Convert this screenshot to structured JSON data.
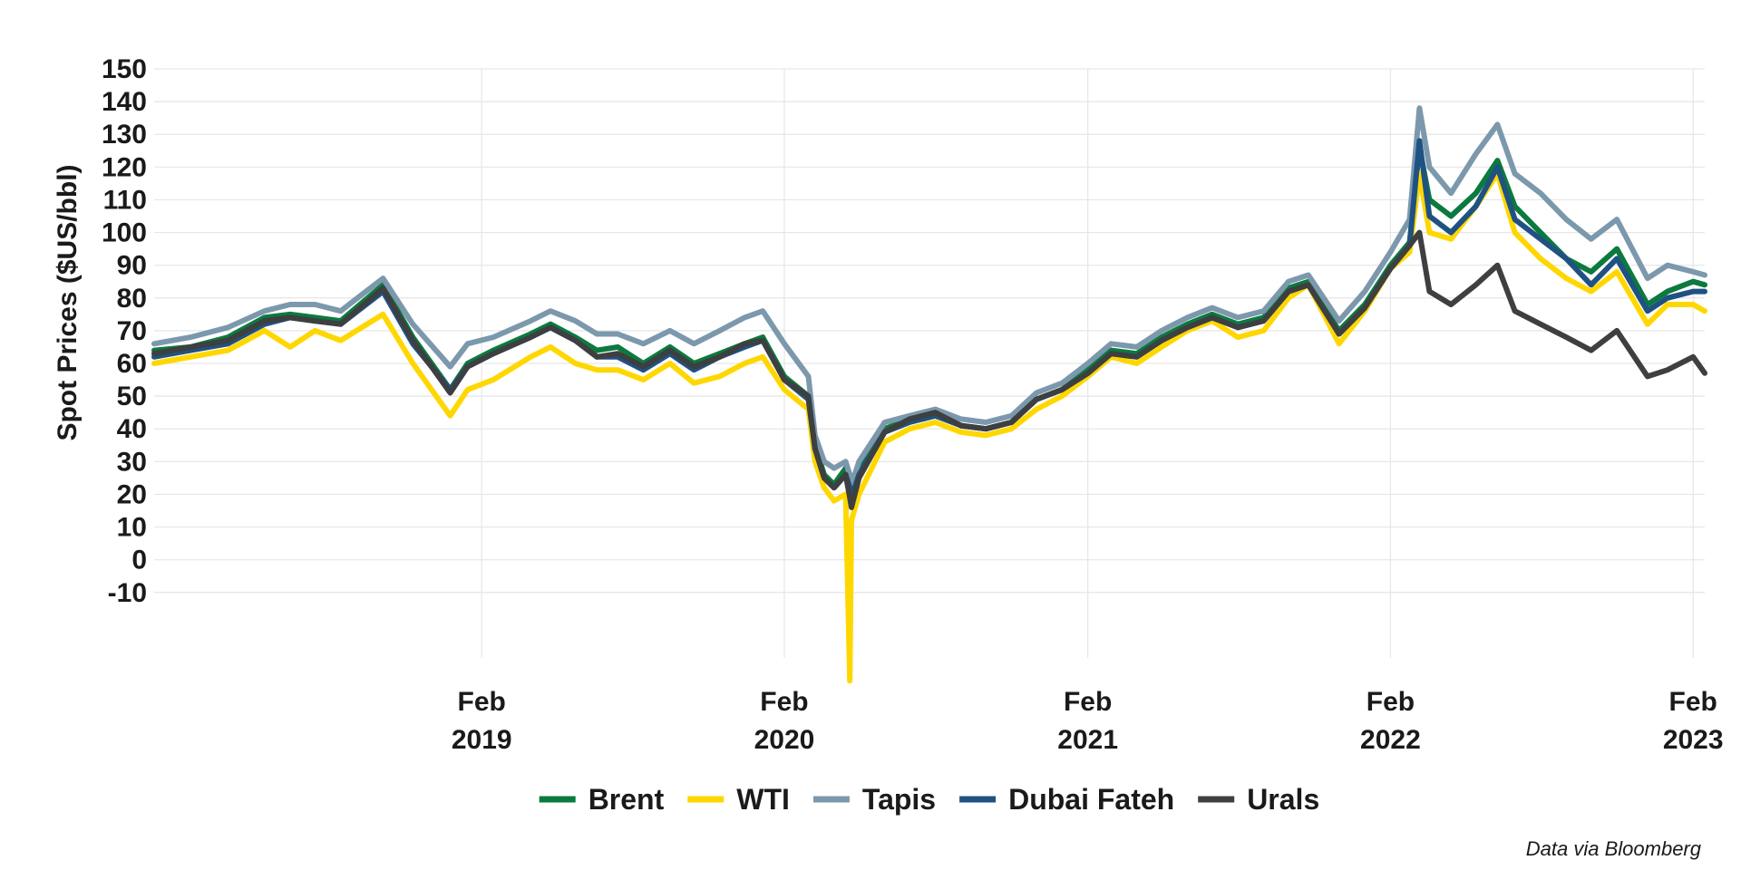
{
  "chart_data": {
    "type": "line",
    "title": "",
    "ylabel": "Spot Prices ($US/bbl)",
    "xlabel": "",
    "ylim": [
      -30,
      150
    ],
    "y_ticks": [
      "150",
      "140",
      "130",
      "120",
      "110",
      "100",
      "90",
      "80",
      "70",
      "60",
      "50",
      "40",
      "30",
      "20",
      "10",
      "0",
      "-10"
    ],
    "y_tick_values": [
      150,
      140,
      130,
      120,
      110,
      100,
      90,
      80,
      70,
      60,
      50,
      40,
      30,
      20,
      10,
      0,
      -10
    ],
    "x_range": [
      "2018-01-02",
      "2023-02-15"
    ],
    "x_ticks": [
      {
        "date": "2019-02-01",
        "month": "Feb",
        "year": "2019"
      },
      {
        "date": "2020-02-01",
        "month": "Feb",
        "year": "2020"
      },
      {
        "date": "2021-02-01",
        "month": "Feb",
        "year": "2021"
      },
      {
        "date": "2022-02-01",
        "month": "Feb",
        "year": "2022"
      },
      {
        "date": "2023-02-01",
        "month": "Feb",
        "year": "2023"
      }
    ],
    "grid": true,
    "legend_position": "bottom",
    "caption": "Data via Bloomberg",
    "dates": [
      "2018-01-02",
      "2018-02-15",
      "2018-04-01",
      "2018-05-15",
      "2018-06-15",
      "2018-07-15",
      "2018-08-15",
      "2018-10-05",
      "2018-11-10",
      "2018-12-25",
      "2019-01-15",
      "2019-02-15",
      "2019-04-01",
      "2019-04-25",
      "2019-05-25",
      "2019-06-20",
      "2019-07-15",
      "2019-08-15",
      "2019-09-16",
      "2019-10-15",
      "2019-11-15",
      "2019-12-15",
      "2020-01-06",
      "2020-02-01",
      "2020-03-01",
      "2020-03-09",
      "2020-03-20",
      "2020-04-01",
      "2020-04-15",
      "2020-04-20",
      "2020-04-22",
      "2020-05-01",
      "2020-06-01",
      "2020-07-01",
      "2020-08-01",
      "2020-09-01",
      "2020-10-01",
      "2020-11-01",
      "2020-12-01",
      "2021-01-01",
      "2021-02-01",
      "2021-03-01",
      "2021-04-01",
      "2021-05-01",
      "2021-06-01",
      "2021-07-01",
      "2021-08-01",
      "2021-09-01",
      "2021-10-01",
      "2021-10-25",
      "2021-12-01",
      "2022-01-01",
      "2022-02-01",
      "2022-02-24",
      "2022-03-08",
      "2022-03-20",
      "2022-04-15",
      "2022-05-15",
      "2022-06-10",
      "2022-07-01",
      "2022-08-01",
      "2022-09-01",
      "2022-10-01",
      "2022-11-01",
      "2022-12-08",
      "2023-01-01",
      "2023-02-01",
      "2023-02-15"
    ],
    "series": [
      {
        "name": "Brent",
        "color": "#0b7a3e",
        "values": [
          64,
          65,
          68,
          74,
          75,
          74,
          73,
          84,
          68,
          52,
          60,
          64,
          69,
          72,
          68,
          64,
          65,
          60,
          65,
          60,
          63,
          66,
          68,
          56,
          50,
          35,
          26,
          23,
          28,
          24,
          20,
          28,
          40,
          43,
          45,
          41,
          40,
          42,
          49,
          52,
          58,
          64,
          63,
          68,
          72,
          75,
          72,
          74,
          83,
          85,
          70,
          78,
          90,
          97,
          126,
          110,
          105,
          112,
          122,
          108,
          100,
          92,
          88,
          95,
          78,
          82,
          85,
          84
        ]
      },
      {
        "name": "WTI",
        "color": "#ffd700",
        "values": [
          60,
          62,
          64,
          70,
          65,
          70,
          67,
          75,
          60,
          44,
          52,
          55,
          62,
          65,
          60,
          58,
          58,
          55,
          60,
          54,
          56,
          60,
          62,
          52,
          46,
          30,
          22,
          18,
          20,
          -37,
          12,
          20,
          36,
          40,
          42,
          39,
          38,
          40,
          46,
          50,
          56,
          62,
          60,
          65,
          70,
          73,
          68,
          70,
          80,
          84,
          66,
          76,
          89,
          94,
          118,
          100,
          98,
          108,
          118,
          100,
          92,
          86,
          82,
          88,
          72,
          78,
          78,
          76
        ]
      },
      {
        "name": "Tapis",
        "color": "#7c98ad",
        "values": [
          66,
          68,
          71,
          76,
          78,
          78,
          76,
          86,
          72,
          59,
          66,
          68,
          73,
          76,
          73,
          69,
          69,
          66,
          70,
          66,
          70,
          74,
          76,
          66,
          56,
          38,
          30,
          28,
          30,
          26,
          23,
          30,
          42,
          44,
          46,
          43,
          42,
          44,
          51,
          54,
          60,
          66,
          65,
          70,
          74,
          77,
          74,
          76,
          85,
          87,
          73,
          82,
          94,
          104,
          138,
          120,
          112,
          124,
          133,
          118,
          112,
          104,
          98,
          104,
          86,
          90,
          88,
          87
        ]
      },
      {
        "name": "Dubai Fateh",
        "color": "#1f5282",
        "values": [
          62,
          64,
          66,
          72,
          74,
          73,
          72,
          82,
          66,
          52,
          59,
          63,
          68,
          71,
          67,
          62,
          62,
          58,
          63,
          58,
          62,
          65,
          67,
          55,
          49,
          34,
          25,
          22,
          26,
          22,
          19,
          26,
          39,
          42,
          44,
          41,
          40,
          42,
          49,
          52,
          57,
          63,
          62,
          67,
          71,
          74,
          71,
          73,
          82,
          84,
          69,
          77,
          89,
          96,
          128,
          105,
          100,
          108,
          120,
          104,
          98,
          92,
          84,
          92,
          76,
          80,
          82,
          82
        ]
      },
      {
        "name": "Urals",
        "color": "#3d3f40",
        "values": [
          63,
          65,
          67,
          73,
          74,
          73,
          72,
          83,
          67,
          51,
          59,
          63,
          68,
          71,
          67,
          62,
          63,
          59,
          64,
          59,
          62,
          66,
          67,
          55,
          50,
          34,
          25,
          22,
          26,
          19,
          16,
          25,
          39,
          43,
          45,
          41,
          40,
          42,
          49,
          52,
          57,
          63,
          62,
          67,
          71,
          74,
          71,
          73,
          82,
          84,
          69,
          77,
          89,
          96,
          100,
          82,
          78,
          84,
          90,
          76,
          72,
          68,
          64,
          70,
          56,
          58,
          62,
          57
        ]
      }
    ]
  }
}
